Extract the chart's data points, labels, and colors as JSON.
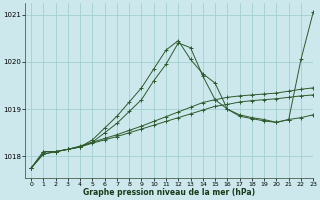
{
  "background_color": "#cce8ec",
  "grid_color": "#99cccc",
  "line_color": "#2d5a2d",
  "x_label": "Graphe pression niveau de la mer (hPa)",
  "xlim": [
    -0.5,
    23
  ],
  "ylim": [
    1017.55,
    1021.25
  ],
  "yticks": [
    1018,
    1019,
    1020,
    1021
  ],
  "xticks": [
    0,
    1,
    2,
    3,
    4,
    5,
    6,
    7,
    8,
    9,
    10,
    11,
    12,
    13,
    14,
    15,
    16,
    17,
    18,
    19,
    20,
    21,
    22,
    23
  ],
  "series": [
    {
      "x": [
        0,
        1,
        2,
        3,
        4,
        5,
        6,
        7,
        8,
        9,
        10,
        11,
        12,
        13,
        14,
        15,
        16,
        17,
        18,
        19,
        20,
        21,
        22,
        23
      ],
      "y": [
        1017.75,
        1018.05,
        1018.1,
        1018.15,
        1018.2,
        1018.28,
        1018.35,
        1018.42,
        1018.5,
        1018.58,
        1018.66,
        1018.74,
        1018.82,
        1018.9,
        1018.98,
        1019.06,
        1019.1,
        1019.15,
        1019.18,
        1019.2,
        1019.22,
        1019.25,
        1019.28,
        1019.3
      ]
    },
    {
      "x": [
        0,
        1,
        2,
        3,
        4,
        5,
        6,
        7,
        8,
        9,
        10,
        11,
        12,
        13,
        14,
        15,
        16,
        17,
        18,
        19,
        20,
        21,
        22,
        23
      ],
      "y": [
        1017.75,
        1018.05,
        1018.1,
        1018.15,
        1018.22,
        1018.3,
        1018.38,
        1018.46,
        1018.55,
        1018.64,
        1018.74,
        1018.84,
        1018.94,
        1019.04,
        1019.14,
        1019.2,
        1019.25,
        1019.28,
        1019.3,
        1019.32,
        1019.34,
        1019.38,
        1019.42,
        1019.45
      ]
    },
    {
      "x": [
        0,
        1,
        2,
        3,
        4,
        5,
        6,
        7,
        8,
        9,
        10,
        11,
        12,
        13,
        14,
        15,
        16,
        17,
        18,
        19,
        20,
        21,
        22,
        23
      ],
      "y": [
        1017.75,
        1018.1,
        1018.1,
        1018.15,
        1018.2,
        1018.35,
        1018.6,
        1018.85,
        1019.15,
        1019.45,
        1019.85,
        1020.25,
        1020.45,
        1020.05,
        1019.75,
        1019.55,
        1019.0,
        1018.85,
        1018.8,
        1018.75,
        1018.72,
        1018.78,
        1020.05,
        1021.05
      ]
    },
    {
      "x": [
        0,
        1,
        2,
        3,
        4,
        5,
        6,
        7,
        8,
        9,
        10,
        11,
        12,
        13,
        14,
        15,
        16,
        17,
        18,
        19,
        20,
        21,
        22,
        23
      ],
      "y": [
        1017.75,
        1018.1,
        1018.1,
        1018.15,
        1018.2,
        1018.3,
        1018.5,
        1018.7,
        1018.95,
        1019.2,
        1019.6,
        1019.95,
        1020.4,
        1020.3,
        1019.7,
        1019.2,
        1019.0,
        1018.88,
        1018.82,
        1018.78,
        1018.72,
        1018.78,
        1018.82,
        1018.88
      ]
    }
  ]
}
